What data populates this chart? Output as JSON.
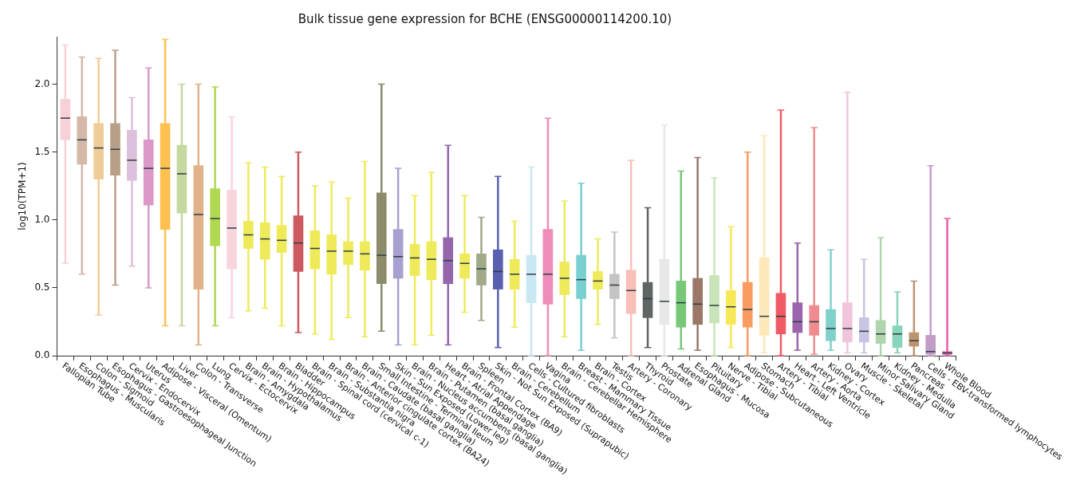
{
  "chart_data": {
    "type": "box",
    "title": "Bulk tissue gene expression for BCHE (ENSG00000114200.10)",
    "ylabel": "log10(TPM+1)",
    "categories": [
      "Fallopian Tube",
      "Esophagus - Muscularis",
      "Colon - Sigmoid",
      "Esophagus - Gastroesophageal Junction",
      "Cervix - Endocervix",
      "Uterus",
      "Adipose - Visceral (Omentum)",
      "Liver",
      "Colon - Transverse",
      "Lung",
      "Cervix - Ectocervix",
      "Brain - Amygdala",
      "Brain - Hypothalamus",
      "Brain - Hippocampus",
      "Bladder",
      "Brain - Spinal cord (cervical c-1)",
      "Brain - Substantia nigra",
      "Brain - Anterior cingulate cortex (BA24)",
      "Brain - Caudate (basal ganglia)",
      "Small Intestine - Terminal Ileum",
      "Skin - Sun Exposed (Lower leg)",
      "Brain - Nucleus accumbens (basal ganglia)",
      "Brain - Putamen (basal ganglia)",
      "Heart - Atrial Appendage",
      "Brain - Frontal Cortex (BA9)",
      "Spleen",
      "Skin - Not Sun Exposed (Suprapubic)",
      "Brain - Cerebellum",
      "Cells - Cultured fibroblasts",
      "Vagina",
      "Brain - Cerebellar Hemisphere",
      "Breast - Mammary Tissue",
      "Brain - Cortex",
      "Testis",
      "Artery - Coronary",
      "Thyroid",
      "Prostate",
      "Adrenal Gland",
      "Esophagus - Mucosa",
      "Pituitary",
      "Nerve - Tibial",
      "Adipose - Subcutaneous",
      "Stomach",
      "Artery - Tibial",
      "Heart - Left Ventricle",
      "Artery - Aorta",
      "Kidney - Cortex",
      "Ovary",
      "Muscle - Skeletal",
      "Minor Salivary Gland",
      "Kidney - Medulla",
      "Pancreas",
      "Cells - EBV-transformed lymphocytes",
      "Whole Blood"
    ],
    "colors": [
      "#f8d0d8",
      "#d4b8a8",
      "#f0cc98",
      "#b8a088",
      "#dcc0dc",
      "#dc98c8",
      "#ffc050",
      "#c4d8a0",
      "#e0b488",
      "#b0d850",
      "#f8d4dc",
      "#eeea5a",
      "#eeea5a",
      "#eeea5a",
      "#cc5a60",
      "#eeea5a",
      "#eeea5a",
      "#eeea5a",
      "#eeea5a",
      "#8c8c6c",
      "#a8a0d0",
      "#eeea5a",
      "#eeea5a",
      "#9466ac",
      "#eeea5a",
      "#a0aa88",
      "#5a60b0",
      "#eeea5a",
      "#c8e8f4",
      "#f08cb8",
      "#eeea5a",
      "#78d0d0",
      "#eeea5a",
      "#c4c4c4",
      "#f8c0b8",
      "#606464",
      "#e8e8e8",
      "#78c878",
      "#9c7868",
      "#c8e4b8",
      "#f8e858",
      "#f89c60",
      "#fce8b8",
      "#f05a64",
      "#9c64ac",
      "#f08c90",
      "#80d0cc",
      "#f0c4dc",
      "#c8c4e4",
      "#b0d4ac",
      "#88d4bc",
      "#bc9470",
      "#c49cc8",
      "#e060a8"
    ],
    "boxes": [
      {
        "low": 0.68,
        "q1": 1.59,
        "median": 1.75,
        "q3": 1.89,
        "high": 2.29
      },
      {
        "low": 0.6,
        "q1": 1.41,
        "median": 1.59,
        "q3": 1.76,
        "high": 2.2
      },
      {
        "low": 0.3,
        "q1": 1.3,
        "median": 1.53,
        "q3": 1.71,
        "high": 2.19
      },
      {
        "low": 0.52,
        "q1": 1.33,
        "median": 1.52,
        "q3": 1.71,
        "high": 2.25
      },
      {
        "low": 0.66,
        "q1": 1.29,
        "median": 1.44,
        "q3": 1.66,
        "high": 1.9
      },
      {
        "low": 0.5,
        "q1": 1.11,
        "median": 1.38,
        "q3": 1.59,
        "high": 2.12
      },
      {
        "low": 0.22,
        "q1": 0.93,
        "median": 1.38,
        "q3": 1.71,
        "high": 2.33
      },
      {
        "low": 0.22,
        "q1": 1.05,
        "median": 1.34,
        "q3": 1.55,
        "high": 2.0
      },
      {
        "low": 0.08,
        "q1": 0.49,
        "median": 1.04,
        "q3": 1.4,
        "high": 2.0
      },
      {
        "low": 0.22,
        "q1": 0.81,
        "median": 1.01,
        "q3": 1.23,
        "high": 1.98
      },
      {
        "low": 0.28,
        "q1": 0.64,
        "median": 0.94,
        "q3": 1.22,
        "high": 1.76
      },
      {
        "low": 0.33,
        "q1": 0.79,
        "median": 0.89,
        "q3": 0.99,
        "high": 1.42
      },
      {
        "low": 0.35,
        "q1": 0.71,
        "median": 0.86,
        "q3": 0.98,
        "high": 1.39
      },
      {
        "low": 0.22,
        "q1": 0.76,
        "median": 0.85,
        "q3": 0.96,
        "high": 1.32
      },
      {
        "low": 0.17,
        "q1": 0.62,
        "median": 0.83,
        "q3": 1.03,
        "high": 1.5
      },
      {
        "low": 0.16,
        "q1": 0.64,
        "median": 0.79,
        "q3": 0.92,
        "high": 1.25
      },
      {
        "low": 0.12,
        "q1": 0.6,
        "median": 0.77,
        "q3": 0.89,
        "high": 1.28
      },
      {
        "low": 0.28,
        "q1": 0.67,
        "median": 0.77,
        "q3": 0.84,
        "high": 1.16
      },
      {
        "low": 0.14,
        "q1": 0.63,
        "median": 0.75,
        "q3": 0.84,
        "high": 1.43
      },
      {
        "low": 0.18,
        "q1": 0.53,
        "median": 0.74,
        "q3": 1.2,
        "high": 2.0
      },
      {
        "low": 0.08,
        "q1": 0.57,
        "median": 0.73,
        "q3": 0.93,
        "high": 1.38
      },
      {
        "low": 0.08,
        "q1": 0.59,
        "median": 0.72,
        "q3": 0.82,
        "high": 1.18
      },
      {
        "low": 0.15,
        "q1": 0.56,
        "median": 0.71,
        "q3": 0.84,
        "high": 1.35
      },
      {
        "low": 0.08,
        "q1": 0.53,
        "median": 0.7,
        "q3": 0.87,
        "high": 1.55
      },
      {
        "low": 0.32,
        "q1": 0.57,
        "median": 0.68,
        "q3": 0.75,
        "high": 1.18
      },
      {
        "low": 0.26,
        "q1": 0.52,
        "median": 0.64,
        "q3": 0.75,
        "high": 1.02
      },
      {
        "low": 0.06,
        "q1": 0.49,
        "median": 0.62,
        "q3": 0.78,
        "high": 1.32
      },
      {
        "low": 0.21,
        "q1": 0.49,
        "median": 0.6,
        "q3": 0.71,
        "high": 0.99
      },
      {
        "low": 0.0,
        "q1": 0.39,
        "median": 0.6,
        "q3": 0.74,
        "high": 1.39
      },
      {
        "low": 0.0,
        "q1": 0.38,
        "median": 0.6,
        "q3": 0.93,
        "high": 1.75
      },
      {
        "low": 0.14,
        "q1": 0.45,
        "median": 0.57,
        "q3": 0.69,
        "high": 1.14
      },
      {
        "low": 0.04,
        "q1": 0.42,
        "median": 0.56,
        "q3": 0.74,
        "high": 1.27
      },
      {
        "low": 0.23,
        "q1": 0.49,
        "median": 0.55,
        "q3": 0.62,
        "high": 0.86
      },
      {
        "low": 0.13,
        "q1": 0.42,
        "median": 0.52,
        "q3": 0.6,
        "high": 0.91
      },
      {
        "low": 0.0,
        "q1": 0.31,
        "median": 0.48,
        "q3": 0.63,
        "high": 1.44
      },
      {
        "low": 0.06,
        "q1": 0.28,
        "median": 0.42,
        "q3": 0.54,
        "high": 1.09
      },
      {
        "low": 0.0,
        "q1": 0.23,
        "median": 0.4,
        "q3": 0.71,
        "high": 1.7
      },
      {
        "low": 0.05,
        "q1": 0.21,
        "median": 0.39,
        "q3": 0.55,
        "high": 1.36
      },
      {
        "low": 0.04,
        "q1": 0.23,
        "median": 0.38,
        "q3": 0.57,
        "high": 1.46
      },
      {
        "low": 0.0,
        "q1": 0.24,
        "median": 0.37,
        "q3": 0.59,
        "high": 1.31
      },
      {
        "low": 0.06,
        "q1": 0.23,
        "median": 0.36,
        "q3": 0.48,
        "high": 0.95
      },
      {
        "low": 0.0,
        "q1": 0.21,
        "median": 0.34,
        "q3": 0.54,
        "high": 1.5
      },
      {
        "low": 0.02,
        "q1": 0.15,
        "median": 0.29,
        "q3": 0.72,
        "high": 1.62
      },
      {
        "low": 0.0,
        "q1": 0.16,
        "median": 0.29,
        "q3": 0.46,
        "high": 1.81
      },
      {
        "low": 0.04,
        "q1": 0.17,
        "median": 0.25,
        "q3": 0.39,
        "high": 0.83
      },
      {
        "low": 0.01,
        "q1": 0.15,
        "median": 0.25,
        "q3": 0.37,
        "high": 1.68
      },
      {
        "low": 0.04,
        "q1": 0.11,
        "median": 0.2,
        "q3": 0.34,
        "high": 0.78
      },
      {
        "low": 0.02,
        "q1": 0.1,
        "median": 0.2,
        "q3": 0.39,
        "high": 1.94
      },
      {
        "low": 0.02,
        "q1": 0.1,
        "median": 0.18,
        "q3": 0.28,
        "high": 0.71
      },
      {
        "low": 0.0,
        "q1": 0.09,
        "median": 0.16,
        "q3": 0.26,
        "high": 0.87
      },
      {
        "low": 0.02,
        "q1": 0.06,
        "median": 0.16,
        "q3": 0.22,
        "high": 0.47
      },
      {
        "low": 0.0,
        "q1": 0.07,
        "median": 0.11,
        "q3": 0.17,
        "high": 0.55
      },
      {
        "low": 0.0,
        "q1": 0.01,
        "median": 0.03,
        "q3": 0.15,
        "high": 1.4
      },
      {
        "low": 0.0,
        "q1": 0.01,
        "median": 0.02,
        "q3": 0.03,
        "high": 1.01
      }
    ],
    "ylim": [
      0,
      2.35
    ],
    "yticks": [
      {
        "value": 0,
        "label": "0.0"
      },
      {
        "value": 0.5,
        "label": "0.5"
      },
      {
        "value": 1,
        "label": "1.0"
      },
      {
        "value": 1.5,
        "label": "1.5"
      },
      {
        "value": 2,
        "label": "2.0"
      }
    ]
  }
}
